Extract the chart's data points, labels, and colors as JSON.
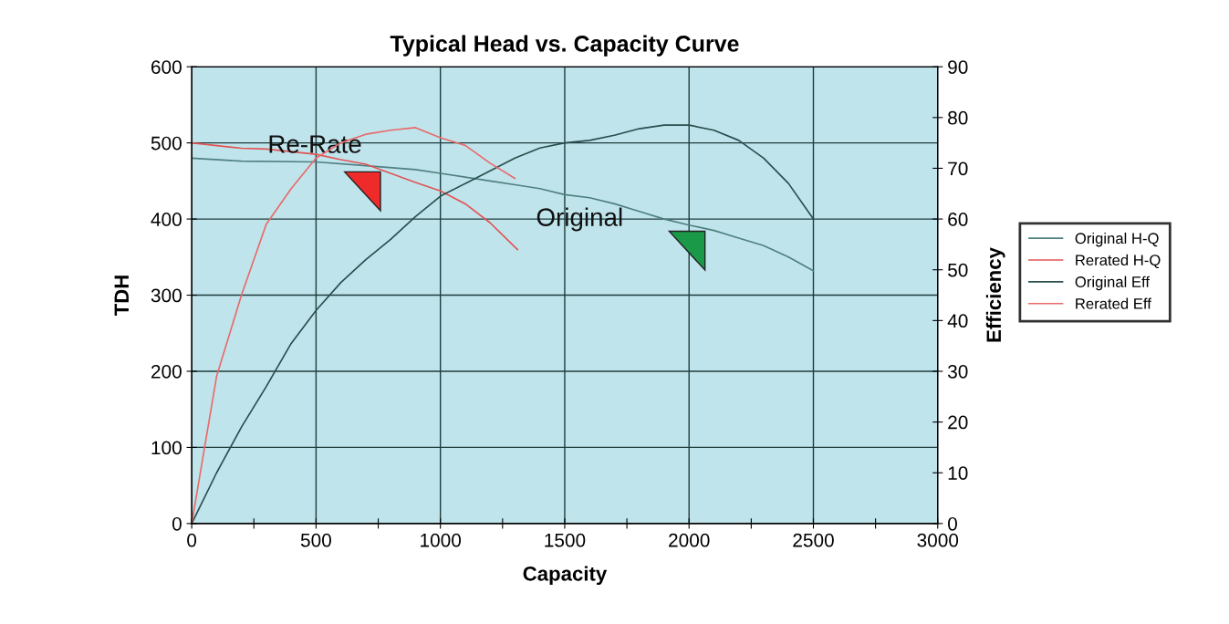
{
  "chart_data": {
    "type": "line",
    "title": "Typical Head vs. Capacity Curve",
    "xlabel": "Capacity",
    "ylabel": "TDH",
    "y2label": "Efficiency",
    "series": [
      {
        "name": "Original H-Q",
        "color": "#4f8080",
        "x": [
          0,
          200,
          500,
          700,
          900,
          1000,
          1200,
          1300,
          1400,
          1500,
          1600,
          1700,
          1800,
          1900,
          2000,
          2100,
          2200,
          2300,
          2400,
          2500
        ],
        "values": [
          480,
          476,
          475,
          470,
          465,
          460,
          450,
          445,
          440,
          432,
          428,
          420,
          410,
          400,
          392,
          385,
          375,
          365,
          350,
          332
        ]
      },
      {
        "name": "Rerated H-Q",
        "color": "#e05555",
        "x": [
          0,
          200,
          300,
          500,
          600,
          700,
          800,
          900,
          1000,
          1100,
          1200,
          1310
        ],
        "values": [
          500,
          493,
          492,
          485,
          478,
          472,
          460,
          448,
          437,
          420,
          395,
          360
        ]
      },
      {
        "name": "Original Eff",
        "color": "#2a4e4e",
        "axis": "y2",
        "x": [
          0,
          100,
          200,
          300,
          400,
          500,
          600,
          700,
          800,
          900,
          1000,
          1100,
          1200,
          1300,
          1400,
          1500,
          1600,
          1700,
          1800,
          1900,
          2000,
          2100,
          2200,
          2300,
          2400,
          2500
        ],
        "values": [
          0,
          10,
          19,
          27,
          35.5,
          42,
          47.5,
          52,
          56,
          60.5,
          64.5,
          67,
          69.5,
          72,
          74,
          75,
          75.5,
          76.5,
          77.8,
          78.5,
          78.5,
          77.5,
          75.5,
          72,
          67,
          60
        ]
      },
      {
        "name": "Rerated Eff",
        "color": "#e86a6a",
        "axis": "y2",
        "x": [
          0,
          100,
          200,
          300,
          400,
          500,
          600,
          700,
          800,
          900,
          1000,
          1100,
          1200,
          1300
        ],
        "values": [
          0,
          29,
          45,
          59,
          66,
          72,
          75,
          76.7,
          77.5,
          78,
          76,
          74.5,
          71,
          68
        ]
      }
    ],
    "xlim": [
      0,
      3000
    ],
    "xticks": [
      0,
      {
        "value": 250,
        "label": null
      },
      500,
      {
        "value": 750,
        "label": null
      },
      1000,
      {
        "value": 1250,
        "label": null
      },
      1500,
      {
        "value": 1750,
        "label": null
      },
      2000,
      {
        "value": 2250,
        "label": null
      },
      2500,
      {
        "value": 2750,
        "label": null
      },
      3000
    ],
    "ylim": [
      0,
      600
    ],
    "yticks": [
      0,
      100,
      200,
      300,
      400,
      500,
      600
    ],
    "y2lim": [
      0,
      90
    ],
    "y2ticks": [
      0,
      10,
      20,
      30,
      40,
      50,
      60,
      70,
      80,
      90
    ],
    "annotations": [
      "Re-Rate",
      "Original"
    ],
    "grid": true,
    "legend": "right",
    "marker": "none",
    "line_style": "solid"
  }
}
